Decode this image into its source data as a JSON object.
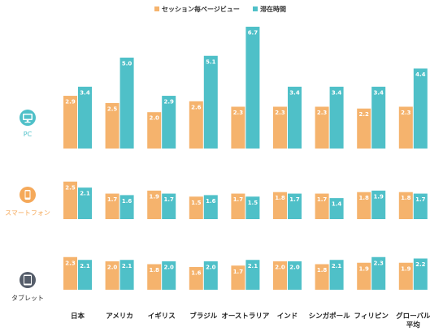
{
  "chart_data": {
    "type": "bar",
    "categories": [
      "日本",
      "アメリカ",
      "イギリス",
      "ブラジル",
      "オーストラリア",
      "インド",
      "シンガポール",
      "フィリピン",
      "グローバル平均"
    ],
    "category_lines": [
      [
        "日本"
      ],
      [
        "アメリカ"
      ],
      [
        "イギリス"
      ],
      [
        "ブラジル"
      ],
      [
        "オーストラリア"
      ],
      [
        "インド"
      ],
      [
        "シンガポール"
      ],
      [
        "フィリピン"
      ],
      [
        "グローバル",
        "平均"
      ]
    ],
    "legend": {
      "position": "top-center",
      "items": [
        {
          "name": "セッション毎ページビュー",
          "color": "#f5b36d"
        },
        {
          "name": "滞在時間",
          "color": "#4fc0c8"
        }
      ]
    },
    "panels": [
      {
        "device": "PC",
        "icon": "desktop-monitor-icon",
        "label_color": "#4fc0c8",
        "icon_color": "#4fc0c8",
        "series": [
          {
            "name": "セッション毎ページビュー",
            "values": [
              2.9,
              2.5,
              2.0,
              2.6,
              2.3,
              2.3,
              2.3,
              2.2,
              2.3
            ]
          },
          {
            "name": "滞在時間",
            "values": [
              3.4,
              5.0,
              2.9,
              5.1,
              6.7,
              3.4,
              3.4,
              3.4,
              4.4
            ]
          }
        ]
      },
      {
        "device": "スマートフォン",
        "icon": "smartphone-icon",
        "label_color": "#f5a95a",
        "icon_color": "#f5a95a",
        "series": [
          {
            "name": "セッション毎ページビュー",
            "values": [
              2.5,
              1.7,
              1.9,
              1.5,
              1.7,
              1.8,
              1.7,
              1.8,
              1.8
            ]
          },
          {
            "name": "滞在時間",
            "values": [
              2.1,
              1.6,
              1.7,
              1.6,
              1.5,
              1.7,
              1.4,
              1.9,
              1.7
            ]
          }
        ]
      },
      {
        "device": "タブレット",
        "icon": "tablet-icon",
        "label_color": "#333333",
        "icon_color": "#555d6a",
        "series": [
          {
            "name": "セッション毎ページビュー",
            "values": [
              2.3,
              2.0,
              1.8,
              1.6,
              1.7,
              2.0,
              1.8,
              1.9,
              1.9
            ]
          },
          {
            "name": "滞在時間",
            "values": [
              2.1,
              2.1,
              2.0,
              2.0,
              2.1,
              2.0,
              2.1,
              2.3,
              2.2
            ]
          }
        ]
      }
    ]
  }
}
